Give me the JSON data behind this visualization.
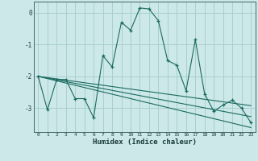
{
  "xlabel": "Humidex (Indice chaleur)",
  "ylabel": "",
  "bg_color": "#cce8e8",
  "grid_color": "#a8d0d0",
  "line_color": "#1a6a60",
  "x_data": [
    0,
    1,
    2,
    3,
    4,
    5,
    6,
    7,
    8,
    9,
    10,
    11,
    12,
    13,
    14,
    15,
    16,
    17,
    18,
    19,
    20,
    21,
    22,
    23
  ],
  "y_main": [
    -2.0,
    -3.05,
    -2.1,
    -2.1,
    -2.7,
    -2.7,
    -3.3,
    -1.35,
    -1.7,
    -0.3,
    -0.55,
    0.15,
    0.12,
    -0.25,
    -1.5,
    -1.65,
    -2.45,
    -0.85,
    -2.55,
    -3.1,
    -2.9,
    -2.75,
    -3.0,
    -3.45
  ],
  "y_trend1": [
    -2.0,
    -2.04,
    -2.08,
    -2.12,
    -2.16,
    -2.2,
    -2.24,
    -2.28,
    -2.32,
    -2.36,
    -2.4,
    -2.44,
    -2.48,
    -2.52,
    -2.56,
    -2.6,
    -2.64,
    -2.68,
    -2.72,
    -2.76,
    -2.8,
    -2.84,
    -2.88,
    -2.92
  ],
  "y_trend2": [
    -2.0,
    -2.055,
    -2.11,
    -2.165,
    -2.22,
    -2.275,
    -2.33,
    -2.385,
    -2.44,
    -2.495,
    -2.55,
    -2.605,
    -2.66,
    -2.715,
    -2.77,
    -2.825,
    -2.88,
    -2.935,
    -2.99,
    -3.045,
    -3.1,
    -3.155,
    -3.21,
    -3.265
  ],
  "y_trend3": [
    -2.0,
    -2.07,
    -2.14,
    -2.21,
    -2.28,
    -2.35,
    -2.42,
    -2.49,
    -2.56,
    -2.63,
    -2.7,
    -2.77,
    -2.84,
    -2.91,
    -2.98,
    -3.05,
    -3.12,
    -3.19,
    -3.26,
    -3.33,
    -3.4,
    -3.47,
    -3.54,
    -3.61
  ],
  "ylim": [
    -3.75,
    0.35
  ],
  "xlim": [
    -0.5,
    23.5
  ],
  "yticks": [
    0,
    -1,
    -2,
    -3
  ],
  "xticks": [
    0,
    1,
    2,
    3,
    4,
    5,
    6,
    7,
    8,
    9,
    10,
    11,
    12,
    13,
    14,
    15,
    16,
    17,
    18,
    19,
    20,
    21,
    22,
    23
  ]
}
